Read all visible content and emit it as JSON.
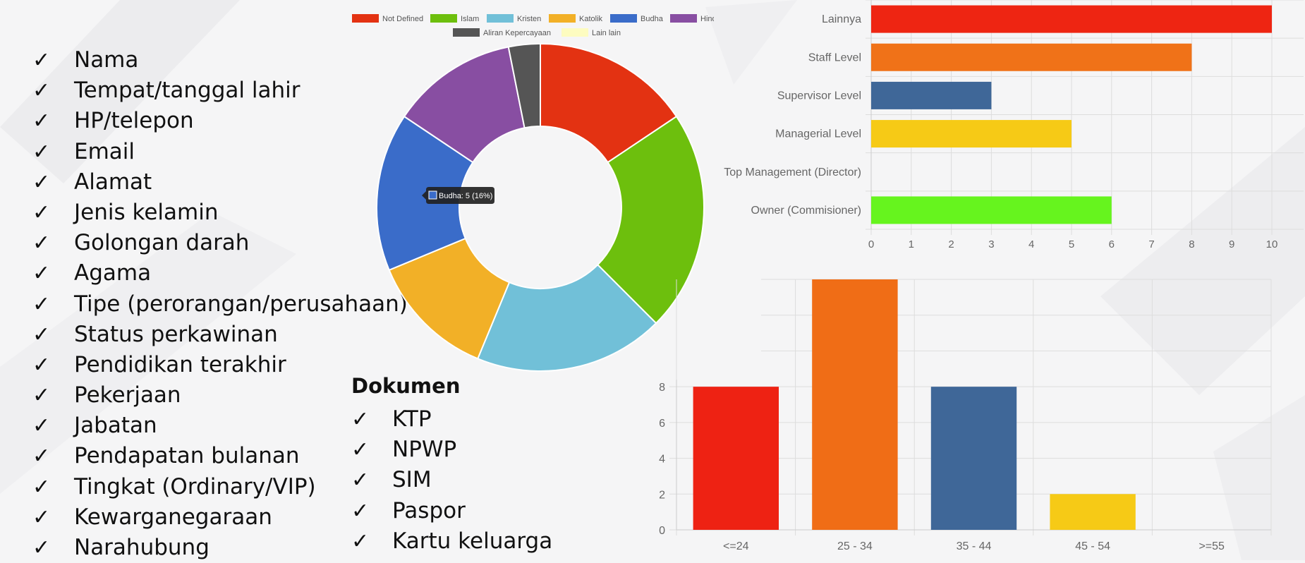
{
  "fields_list": {
    "items": [
      "Nama",
      "Tempat/tanggal lahir",
      "HP/telepon",
      "Email",
      "Alamat",
      "Jenis kelamin",
      "Golongan darah",
      "Agama",
      "Tipe (perorangan/perusahaan)",
      "Status perkawinan",
      "Pendidikan terakhir",
      "Pekerjaan",
      "Jabatan",
      "Pendapatan bulanan",
      "Tingkat (Ordinary/VIP)",
      "Kewarganegaraan",
      "Narahubung"
    ]
  },
  "documents": {
    "title": "Dokumen",
    "items": [
      "KTP",
      "NPWP",
      "SIM",
      "Paspor",
      "Kartu keluarga"
    ]
  },
  "chart_data": [
    {
      "type": "pie",
      "variant": "doughnut",
      "title": "",
      "legend": [
        {
          "label": "Not Defined",
          "color": "#e33212"
        },
        {
          "label": "Islam",
          "color": "#6dbf0d"
        },
        {
          "label": "Kristen",
          "color": "#71c0d8"
        },
        {
          "label": "Katolik",
          "color": "#f2b027"
        },
        {
          "label": "Budha",
          "color": "#3a6cc9"
        },
        {
          "label": "Hindu",
          "color": "#884ea2"
        },
        {
          "label": "Aliran Kepercayaan",
          "color": "#555555"
        },
        {
          "label": "Lain lain",
          "color": "#fdfcc0"
        }
      ],
      "legend_position": "top",
      "slices": [
        {
          "label": "Not Defined",
          "value": 5,
          "color": "#e33212"
        },
        {
          "label": "Islam",
          "value": 7,
          "color": "#6dbf0d"
        },
        {
          "label": "Kristen",
          "value": 6,
          "color": "#71c0d8"
        },
        {
          "label": "Katolik",
          "value": 4,
          "color": "#f2b027"
        },
        {
          "label": "Budha",
          "value": 5,
          "color": "#3a6cc9"
        },
        {
          "label": "Hindu",
          "value": 4,
          "color": "#884ea2"
        },
        {
          "label": "Aliran Kepercayaan",
          "value": 1,
          "color": "#555555"
        },
        {
          "label": "Lain lain",
          "value": 0,
          "color": "#fdfcc0"
        }
      ],
      "tooltip": {
        "text": "Budha: 5 (16%)",
        "swatch_color": "#3a6cc9"
      }
    },
    {
      "type": "bar",
      "orientation": "horizontal",
      "categories": [
        "Lainnya",
        "Staff Level",
        "Supervisor Level",
        "Managerial Level",
        "Top Management (Director)",
        "Owner (Commisioner)"
      ],
      "values": [
        10,
        8,
        3,
        5,
        0,
        6
      ],
      "colors": [
        "#ee2512",
        "#f07218",
        "#3f6798",
        "#f6ca16",
        "#cccccc",
        "#66f41e"
      ],
      "xlim": [
        0,
        10
      ],
      "ticks": [
        "0",
        "1",
        "2",
        "3",
        "4",
        "5",
        "6",
        "7",
        "8",
        "9",
        "10"
      ],
      "grid": true
    },
    {
      "type": "bar",
      "orientation": "vertical",
      "categories": [
        "<=24",
        "25 - 34",
        "35 - 44",
        "45 - 54",
        ">=55"
      ],
      "values": [
        8,
        14,
        8,
        2,
        0
      ],
      "colors": [
        "#ee2213",
        "#f06d16",
        "#3f6798",
        "#f6ca16",
        "#cccccc"
      ],
      "ylim": [
        0,
        14
      ],
      "yticks": [
        "0",
        "2",
        "4",
        "6",
        "8"
      ],
      "grid": true
    }
  ]
}
